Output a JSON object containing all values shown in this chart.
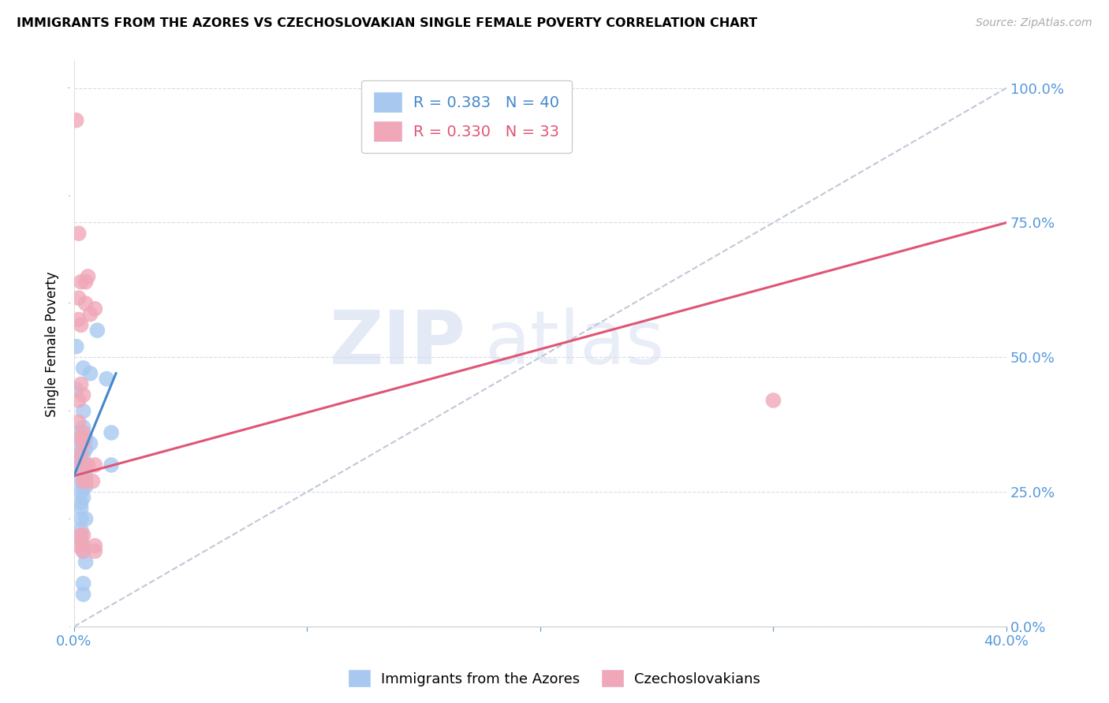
{
  "title": "IMMIGRANTS FROM THE AZORES VS CZECHOSLOVAKIAN SINGLE FEMALE POVERTY CORRELATION CHART",
  "source": "Source: ZipAtlas.com",
  "ylabel": "Single Female Poverty",
  "yticks": [
    "0.0%",
    "25.0%",
    "50.0%",
    "75.0%",
    "100.0%"
  ],
  "ytick_vals": [
    0,
    25,
    50,
    75,
    100
  ],
  "legend_blue_r": "0.383",
  "legend_blue_n": "40",
  "legend_pink_r": "0.330",
  "legend_pink_n": "33",
  "legend_label_blue": "Immigrants from the Azores",
  "legend_label_pink": "Czechoslovakians",
  "blue_color": "#a8c8f0",
  "pink_color": "#f0a8b8",
  "blue_line_color": "#4488cc",
  "pink_line_color": "#e05575",
  "diag_line_color": "#c0c8d8",
  "watermark_text": "ZIP",
  "watermark_text2": "atlas",
  "xlim_min": 0,
  "xlim_max": 40,
  "ylim_min": 0,
  "ylim_max": 105,
  "blue_points_x": [
    0.1,
    0.2,
    0.2,
    0.2,
    0.3,
    0.3,
    0.3,
    0.3,
    0.3,
    0.3,
    0.3,
    0.3,
    0.4,
    0.4,
    0.4,
    0.4,
    0.4,
    0.4,
    0.4,
    0.4,
    0.4,
    0.4,
    0.4,
    0.4,
    0.5,
    0.5,
    0.5,
    0.5,
    0.5,
    0.5,
    0.5,
    0.7,
    0.7,
    1.0,
    1.4,
    1.6,
    1.6,
    0.1,
    0.3,
    0.4
  ],
  "blue_points_y": [
    44,
    30,
    36,
    32,
    34,
    31,
    27,
    25,
    23,
    22,
    20,
    16,
    48,
    37,
    35,
    34,
    32,
    29,
    28,
    26,
    14,
    8,
    6,
    24,
    35,
    33,
    30,
    28,
    26,
    20,
    12,
    47,
    34,
    55,
    46,
    36,
    30,
    52,
    18,
    40
  ],
  "pink_points_x": [
    0.1,
    0.2,
    0.2,
    0.2,
    0.2,
    0.2,
    0.3,
    0.3,
    0.3,
    0.3,
    0.3,
    0.3,
    0.3,
    0.4,
    0.4,
    0.4,
    0.4,
    0.4,
    0.4,
    0.4,
    0.5,
    0.5,
    0.5,
    0.6,
    0.6,
    0.7,
    0.8,
    0.9,
    0.9,
    0.9,
    0.9,
    0.2,
    30.0
  ],
  "pink_points_y": [
    94,
    73,
    61,
    57,
    42,
    38,
    64,
    56,
    45,
    35,
    32,
    30,
    17,
    43,
    36,
    34,
    27,
    17,
    15,
    14,
    64,
    60,
    27,
    65,
    30,
    58,
    27,
    30,
    15,
    14,
    59,
    15,
    42
  ],
  "blue_line_x": [
    0.0,
    1.8
  ],
  "blue_line_y": [
    28,
    47
  ],
  "pink_line_x": [
    0.0,
    40.0
  ],
  "pink_line_y": [
    28,
    75
  ],
  "diag_line_x": [
    0.0,
    40.0
  ],
  "diag_line_y": [
    0.0,
    100.0
  ],
  "xtick_positions": [
    0,
    10,
    20,
    30,
    40
  ],
  "xtick_labels": [
    "0.0%",
    "",
    "",
    "",
    "40.0%"
  ]
}
